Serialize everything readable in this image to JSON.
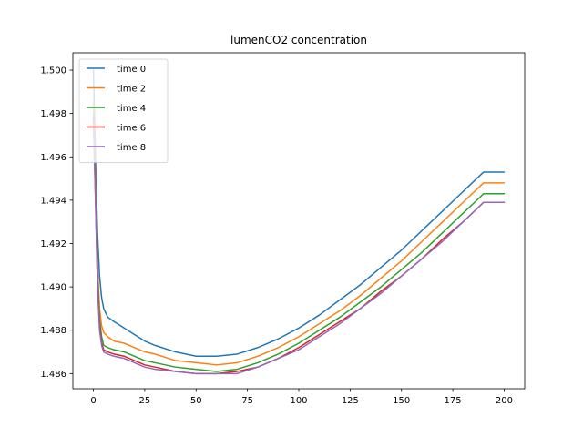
{
  "chart_data": {
    "type": "line",
    "title": "lumenCO2 concentration",
    "xlabel": "",
    "ylabel": "",
    "xlim": [
      -10,
      210
    ],
    "ylim": [
      1.4853,
      1.5008
    ],
    "x_ticks": [
      0,
      25,
      50,
      75,
      100,
      125,
      150,
      175,
      200
    ],
    "y_ticks": [
      1.486,
      1.488,
      1.49,
      1.492,
      1.494,
      1.496,
      1.498,
      1.5
    ],
    "y_tick_labels": [
      "1.486",
      "1.488",
      "1.490",
      "1.492",
      "1.494",
      "1.496",
      "1.498",
      "1.500"
    ],
    "legend_placement": "upper-left",
    "grid": false,
    "x": [
      0,
      1,
      2,
      3,
      4,
      5,
      7,
      10,
      15,
      20,
      25,
      30,
      40,
      50,
      60,
      70,
      80,
      90,
      100,
      110,
      120,
      130,
      140,
      150,
      160,
      170,
      180,
      190,
      200
    ],
    "series": [
      {
        "name": "time 0",
        "color": "#1f77b4",
        "values": [
          1.5,
          1.496,
          1.4925,
          1.4905,
          1.4895,
          1.489,
          1.4886,
          1.4884,
          1.4881,
          1.4878,
          1.4875,
          1.4873,
          1.487,
          1.4868,
          1.4868,
          1.4869,
          1.4872,
          1.4876,
          1.4881,
          1.4887,
          1.4894,
          1.4901,
          1.4909,
          1.4917,
          1.4926,
          1.4935,
          1.4944,
          1.4953,
          1.4953
        ]
      },
      {
        "name": "time 2",
        "color": "#ff7f0e",
        "values": [
          1.4985,
          1.495,
          1.491,
          1.489,
          1.4882,
          1.4879,
          1.4877,
          1.4875,
          1.4874,
          1.4872,
          1.487,
          1.4869,
          1.4866,
          1.4865,
          1.4864,
          1.4865,
          1.4868,
          1.4872,
          1.4877,
          1.4883,
          1.4889,
          1.4896,
          1.4904,
          1.4912,
          1.4921,
          1.493,
          1.4939,
          1.4948,
          1.4948
        ]
      },
      {
        "name": "time 4",
        "color": "#2ca02c",
        "values": [
          1.498,
          1.4945,
          1.4905,
          1.4885,
          1.4877,
          1.4873,
          1.4872,
          1.4871,
          1.487,
          1.4868,
          1.4866,
          1.4865,
          1.4863,
          1.4862,
          1.4861,
          1.4862,
          1.4865,
          1.4869,
          1.4874,
          1.488,
          1.4886,
          1.4893,
          1.49,
          1.4908,
          1.4916,
          1.4925,
          1.4934,
          1.4943,
          1.4943
        ]
      },
      {
        "name": "time 6",
        "color": "#d62728",
        "values": [
          1.4978,
          1.4942,
          1.4902,
          1.4882,
          1.4874,
          1.4871,
          1.487,
          1.4869,
          1.4868,
          1.4866,
          1.4864,
          1.4863,
          1.4861,
          1.486,
          1.486,
          1.4861,
          1.4863,
          1.4867,
          1.4872,
          1.4878,
          1.4884,
          1.489,
          1.4898,
          1.4905,
          1.4913,
          1.4922,
          1.493,
          1.4939,
          1.4939
        ]
      },
      {
        "name": "time 8",
        "color": "#9467bd",
        "values": [
          1.4976,
          1.494,
          1.49,
          1.488,
          1.4873,
          1.487,
          1.4869,
          1.4868,
          1.4867,
          1.4865,
          1.4863,
          1.4862,
          1.4861,
          1.486,
          1.486,
          1.486,
          1.4863,
          1.4867,
          1.4871,
          1.4877,
          1.4883,
          1.489,
          1.4897,
          1.4905,
          1.4913,
          1.4921,
          1.493,
          1.4939,
          1.4939
        ]
      }
    ]
  }
}
